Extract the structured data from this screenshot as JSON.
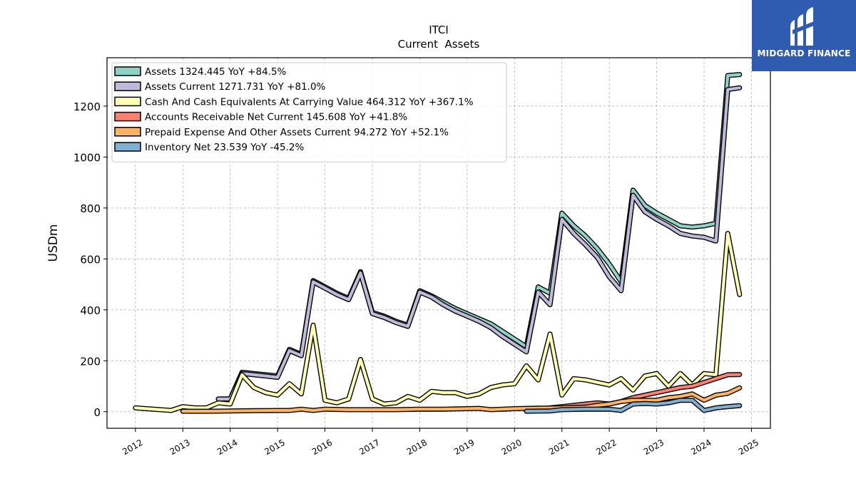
{
  "chart_data": {
    "type": "line",
    "title": "ITCI",
    "subtitle": "Current  Assets",
    "ylabel": "USDm",
    "xlabel": "",
    "xlim": [
      2011.4,
      2025.4
    ],
    "ylim": [
      -65,
      1390
    ],
    "yticks": [
      0,
      200,
      400,
      600,
      800,
      1000,
      1200
    ],
    "xticks": [
      "2012",
      "2013",
      "2014",
      "2015",
      "2016",
      "2017",
      "2018",
      "2019",
      "2020",
      "2021",
      "2022",
      "2023",
      "2024",
      "2025"
    ],
    "grid": true,
    "legend_position": "top-left",
    "series": [
      {
        "name": "Assets  1324.445 YoY +84.5%",
        "color": "#8dd3c7",
        "x": [
          2013.75,
          2014.0,
          2014.25,
          2014.5,
          2014.75,
          2015.0,
          2015.25,
          2015.5,
          2015.75,
          2016.0,
          2016.25,
          2016.5,
          2016.75,
          2017.0,
          2017.25,
          2017.5,
          2017.75,
          2018.0,
          2018.25,
          2018.5,
          2018.75,
          2019.0,
          2019.25,
          2019.5,
          2019.75,
          2020.0,
          2020.25,
          2020.5,
          2020.75,
          2021.0,
          2021.25,
          2021.5,
          2021.75,
          2022.0,
          2022.25,
          2022.5,
          2022.75,
          2023.0,
          2023.25,
          2023.5,
          2023.75,
          2024.0,
          2024.25,
          2024.5,
          2024.75
        ],
        "y": [
          50,
          50,
          155,
          150,
          145,
          140,
          245,
          225,
          515,
          490,
          465,
          445,
          550,
          390,
          375,
          355,
          340,
          475,
          455,
          430,
          405,
          385,
          365,
          345,
          315,
          285,
          255,
          490,
          465,
          780,
          730,
          690,
          640,
          580,
          510,
          870,
          810,
          780,
          755,
          730,
          725,
          730,
          740,
          1320,
          1324
        ]
      },
      {
        "name": "Assets Current  1271.731 YoY +81.0%",
        "color": "#bebada",
        "x": [
          2013.75,
          2014.0,
          2014.25,
          2014.5,
          2014.75,
          2015.0,
          2015.25,
          2015.5,
          2015.75,
          2016.0,
          2016.25,
          2016.5,
          2016.75,
          2017.0,
          2017.25,
          2017.5,
          2017.75,
          2018.0,
          2018.25,
          2018.5,
          2018.75,
          2019.0,
          2019.25,
          2019.5,
          2019.75,
          2020.0,
          2020.25,
          2020.5,
          2020.75,
          2021.0,
          2021.25,
          2021.5,
          2021.75,
          2022.0,
          2022.25,
          2022.5,
          2022.75,
          2023.0,
          2023.25,
          2023.5,
          2023.75,
          2024.0,
          2024.25,
          2024.5,
          2024.75
        ],
        "y": [
          50,
          50,
          150,
          145,
          140,
          135,
          240,
          220,
          510,
          485,
          460,
          440,
          545,
          385,
          370,
          350,
          335,
          470,
          450,
          420,
          395,
          375,
          355,
          330,
          295,
          265,
          235,
          470,
          420,
          755,
          700,
          655,
          605,
          530,
          475,
          850,
          785,
          755,
          730,
          700,
          690,
          685,
          670,
          1265,
          1272
        ]
      },
      {
        "name": "Cash And Cash Equivalents At Carrying Value  464.312 YoY +367.1%",
        "color": "#ffffb3",
        "x": [
          2012.0,
          2012.75,
          2013.0,
          2013.25,
          2013.5,
          2013.75,
          2014.0,
          2014.25,
          2014.5,
          2014.75,
          2015.0,
          2015.25,
          2015.5,
          2015.75,
          2016.0,
          2016.25,
          2016.5,
          2016.75,
          2017.0,
          2017.25,
          2017.5,
          2017.75,
          2018.0,
          2018.25,
          2018.5,
          2018.75,
          2019.0,
          2019.25,
          2019.5,
          2019.75,
          2020.0,
          2020.25,
          2020.5,
          2020.75,
          2021.0,
          2021.25,
          2021.5,
          2021.75,
          2022.0,
          2022.25,
          2022.5,
          2022.75,
          2023.0,
          2023.25,
          2023.5,
          2023.75,
          2024.0,
          2024.25,
          2024.5,
          2024.75
        ],
        "y": [
          15,
          5,
          20,
          15,
          15,
          35,
          30,
          145,
          95,
          75,
          65,
          110,
          70,
          340,
          45,
          35,
          50,
          205,
          50,
          30,
          35,
          60,
          45,
          80,
          75,
          75,
          60,
          70,
          95,
          105,
          110,
          180,
          125,
          305,
          65,
          130,
          125,
          115,
          105,
          130,
          85,
          140,
          150,
          100,
          150,
          105,
          150,
          145,
          700,
          460
        ]
      },
      {
        "name": "Accounts Receivable Net Current  145.608 YoY +41.8%",
        "color": "#fb8072",
        "x": [
          2020.25,
          2020.5,
          2020.75,
          2021.0,
          2021.25,
          2021.5,
          2021.75,
          2022.0,
          2022.25,
          2022.5,
          2022.75,
          2023.0,
          2023.25,
          2023.5,
          2023.75,
          2024.0,
          2024.25,
          2024.5,
          2024.75
        ],
        "y": [
          5,
          10,
          15,
          20,
          25,
          30,
          35,
          30,
          40,
          55,
          65,
          75,
          85,
          95,
          100,
          115,
          130,
          145,
          146
        ]
      },
      {
        "name": "Prepaid Expense And Other Assets Current  94.272 YoY +52.1%",
        "color": "#fdb462",
        "x": [
          2013.0,
          2013.5,
          2014.0,
          2014.5,
          2015.0,
          2015.25,
          2015.5,
          2015.75,
          2016.0,
          2016.5,
          2017.0,
          2017.5,
          2018.0,
          2018.5,
          2019.0,
          2019.25,
          2019.5,
          2019.75,
          2020.0,
          2020.5,
          2021.0,
          2021.5,
          2021.75,
          2022.0,
          2022.25,
          2022.5,
          2022.75,
          2023.0,
          2023.25,
          2023.5,
          2023.75,
          2024.0,
          2024.25,
          2024.5,
          2024.75
        ],
        "y": [
          2,
          2,
          3,
          4,
          5,
          5,
          10,
          5,
          10,
          8,
          8,
          8,
          10,
          10,
          12,
          13,
          8,
          10,
          12,
          14,
          15,
          18,
          25,
          30,
          40,
          45,
          45,
          45,
          55,
          60,
          70,
          45,
          65,
          72,
          94
        ]
      },
      {
        "name": "Inventory Net  23.539 YoY -45.2%",
        "color": "#80b1d3",
        "x": [
          2020.25,
          2020.75,
          2021.0,
          2021.5,
          2021.75,
          2022.0,
          2022.25,
          2022.5,
          2022.75,
          2023.0,
          2023.25,
          2023.5,
          2023.75,
          2024.0,
          2024.25,
          2024.5,
          2024.75
        ],
        "y": [
          2,
          3,
          8,
          10,
          10,
          10,
          5,
          30,
          32,
          30,
          35,
          45,
          45,
          5,
          15,
          20,
          24
        ]
      }
    ]
  },
  "logo": {
    "text": "MIDGARD FINANCE",
    "background": "#2f5cb0"
  }
}
